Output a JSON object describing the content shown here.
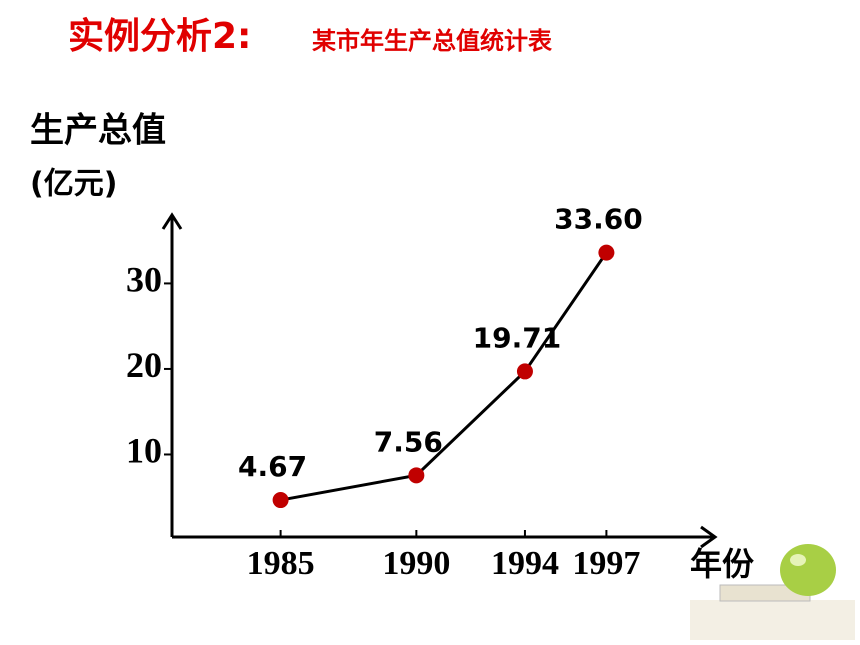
{
  "chart_data": {
    "type": "line",
    "title": "实例分析2:",
    "subtitle": "某市年生产总值统计表",
    "y_label": [
      "生产总值",
      "(亿元)"
    ],
    "x_label": "年份",
    "x": [
      1985,
      1990,
      1994,
      1997
    ],
    "series": [
      {
        "color": "#c00000",
        "values": [
          4.67,
          7.56,
          19.71,
          33.6
        ],
        "value_labels": [
          "4.67",
          "7.56",
          "19.71",
          "33.60"
        ]
      }
    ],
    "xlim": [
      1981,
      2001
    ],
    "xticks": [
      1985,
      1990,
      1994,
      1997
    ],
    "ylim": [
      0,
      38
    ],
    "yticks": [
      10,
      20,
      30
    ]
  }
}
